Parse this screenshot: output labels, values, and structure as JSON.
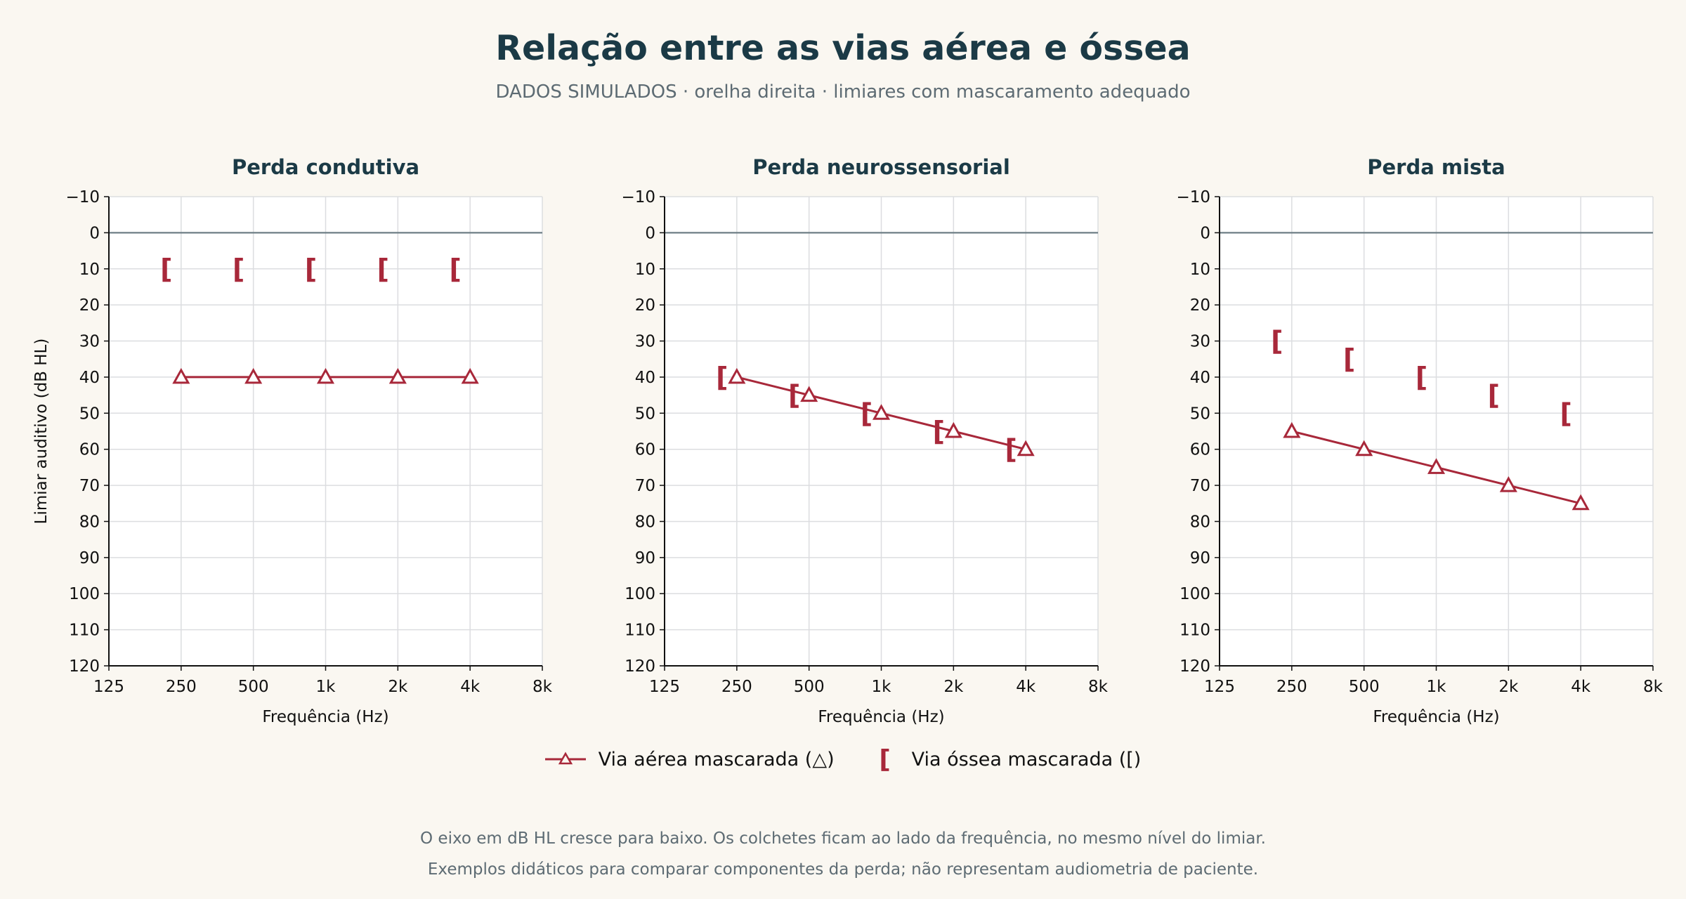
{
  "title": "Relação entre as vias aérea e óssea",
  "subtitle": "DADOS SIMULADOS · orelha direita · limiares com mascaramento adequado",
  "footer": {
    "line1": "O eixo em dB HL cresce para baixo. Os colchetes ficam ao lado da frequência, no mesmo nível do limiar.",
    "line2": "Exemplos didáticos para comparar componentes da perda; não representam audiometria de paciente."
  },
  "legend": {
    "air_label": "Via aérea mascarada (△)",
    "bone_label": "Via óssea mascarada ([)",
    "bone_symbol": "["
  },
  "colors": {
    "series": "#a8283a",
    "grid": "#dcdde0",
    "zero_line": "#6e7f86",
    "title": "#1b3a46"
  },
  "chart_data": [
    {
      "type": "line",
      "title": "Perda condutiva",
      "xlabel": "Frequência (Hz)",
      "ylabel": "Limiar auditivo (dB HL)",
      "x_scale": "log2",
      "xlim": [
        125,
        8000
      ],
      "ylim": [
        120,
        -10
      ],
      "x_ticks": [
        125,
        250,
        500,
        1000,
        2000,
        4000,
        8000
      ],
      "x_tick_labels": [
        "125",
        "250",
        "500",
        "1k",
        "2k",
        "4k",
        "8k"
      ],
      "y_ticks": [
        -10,
        0,
        10,
        20,
        30,
        40,
        50,
        60,
        70,
        80,
        90,
        100,
        110,
        120
      ],
      "y_tick_labels": [
        "−10",
        "0",
        "10",
        "20",
        "30",
        "40",
        "50",
        "60",
        "70",
        "80",
        "90",
        "100",
        "110",
        "120"
      ],
      "grid": true,
      "x": [
        250,
        500,
        1000,
        2000,
        4000
      ],
      "series": [
        {
          "name": "Via aérea mascarada (△)",
          "marker": "triangle",
          "values": [
            40,
            40,
            40,
            40,
            40
          ]
        },
        {
          "name": "Via óssea mascarada ([)",
          "marker": "bracket",
          "values": [
            10,
            10,
            10,
            10,
            10
          ]
        }
      ]
    },
    {
      "type": "line",
      "title": "Perda neurossensorial",
      "xlabel": "Frequência (Hz)",
      "ylabel": "",
      "x_scale": "log2",
      "xlim": [
        125,
        8000
      ],
      "ylim": [
        120,
        -10
      ],
      "x_ticks": [
        125,
        250,
        500,
        1000,
        2000,
        4000,
        8000
      ],
      "x_tick_labels": [
        "125",
        "250",
        "500",
        "1k",
        "2k",
        "4k",
        "8k"
      ],
      "y_ticks": [
        -10,
        0,
        10,
        20,
        30,
        40,
        50,
        60,
        70,
        80,
        90,
        100,
        110,
        120
      ],
      "y_tick_labels": [
        "−10",
        "0",
        "10",
        "20",
        "30",
        "40",
        "50",
        "60",
        "70",
        "80",
        "90",
        "100",
        "110",
        "120"
      ],
      "grid": true,
      "x": [
        250,
        500,
        1000,
        2000,
        4000
      ],
      "series": [
        {
          "name": "Via aérea mascarada (△)",
          "marker": "triangle",
          "values": [
            40,
            45,
            50,
            55,
            60
          ]
        },
        {
          "name": "Via óssea mascarada ([)",
          "marker": "bracket",
          "values": [
            40,
            45,
            50,
            55,
            60
          ]
        }
      ]
    },
    {
      "type": "line",
      "title": "Perda mista",
      "xlabel": "Frequência (Hz)",
      "ylabel": "",
      "x_scale": "log2",
      "xlim": [
        125,
        8000
      ],
      "ylim": [
        120,
        -10
      ],
      "x_ticks": [
        125,
        250,
        500,
        1000,
        2000,
        4000,
        8000
      ],
      "x_tick_labels": [
        "125",
        "250",
        "500",
        "1k",
        "2k",
        "4k",
        "8k"
      ],
      "y_ticks": [
        -10,
        0,
        10,
        20,
        30,
        40,
        50,
        60,
        70,
        80,
        90,
        100,
        110,
        120
      ],
      "y_tick_labels": [
        "−10",
        "0",
        "10",
        "20",
        "30",
        "40",
        "50",
        "60",
        "70",
        "80",
        "90",
        "100",
        "110",
        "120"
      ],
      "grid": true,
      "x": [
        250,
        500,
        1000,
        2000,
        4000
      ],
      "series": [
        {
          "name": "Via aérea mascarada (△)",
          "marker": "triangle",
          "values": [
            55,
            60,
            65,
            70,
            75
          ]
        },
        {
          "name": "Via óssea mascarada ([)",
          "marker": "bracket",
          "values": [
            30,
            35,
            40,
            45,
            50
          ]
        }
      ]
    }
  ]
}
